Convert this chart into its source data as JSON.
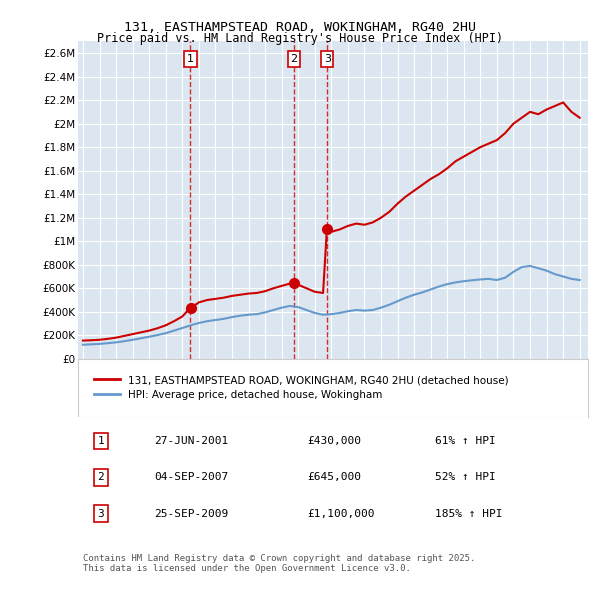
{
  "title1": "131, EASTHAMPSTEAD ROAD, WOKINGHAM, RG40 2HU",
  "title2": "Price paid vs. HM Land Registry's House Price Index (HPI)",
  "background_color": "#dce6f0",
  "plot_bg_color": "#dce6f0",
  "legend_label_red": "131, EASTHAMPSTEAD ROAD, WOKINGHAM, RG40 2HU (detached house)",
  "legend_label_blue": "HPI: Average price, detached house, Wokingham",
  "red_color": "#cc0000",
  "blue_color": "#6699cc",
  "purchase_dates": [
    "2001-06-27",
    "2007-09-04",
    "2009-09-25"
  ],
  "purchase_prices": [
    430000,
    645000,
    1100000
  ],
  "purchase_labels": [
    "1",
    "2",
    "3"
  ],
  "table_entries": [
    {
      "num": "1",
      "date": "27-JUN-2001",
      "price": "£430,000",
      "change": "61% ↑ HPI"
    },
    {
      "num": "2",
      "date": "04-SEP-2007",
      "price": "£645,000",
      "change": "52% ↑ HPI"
    },
    {
      "num": "3",
      "date": "25-SEP-2009",
      "price": "£1,100,000",
      "change": "185% ↑ HPI"
    }
  ],
  "footer": "Contains HM Land Registry data © Crown copyright and database right 2025.\nThis data is licensed under the Open Government Licence v3.0.",
  "ylim": [
    0,
    2700000
  ],
  "yticks": [
    0,
    200000,
    400000,
    600000,
    800000,
    1000000,
    1200000,
    1400000,
    1600000,
    1800000,
    2000000,
    2200000,
    2400000,
    2600000
  ],
  "red_line": {
    "x": [
      1995.0,
      1995.5,
      1996.0,
      1996.5,
      1997.0,
      1997.5,
      1998.0,
      1998.5,
      1999.0,
      1999.5,
      2000.0,
      2000.5,
      2001.0,
      2001.46,
      2001.46,
      2001.5,
      2002.0,
      2002.5,
      2003.0,
      2003.5,
      2004.0,
      2004.5,
      2005.0,
      2005.5,
      2006.0,
      2006.5,
      2007.0,
      2007.5,
      2007.73,
      2007.73,
      2007.8,
      2008.0,
      2008.5,
      2009.0,
      2009.5,
      2009.73,
      2009.73,
      2010.0,
      2010.5,
      2011.0,
      2011.5,
      2012.0,
      2012.5,
      2013.0,
      2013.5,
      2014.0,
      2014.5,
      2015.0,
      2015.5,
      2016.0,
      2016.5,
      2017.0,
      2017.5,
      2018.0,
      2018.5,
      2019.0,
      2019.5,
      2020.0,
      2020.5,
      2021.0,
      2021.5,
      2022.0,
      2022.5,
      2023.0,
      2023.5,
      2024.0,
      2024.5,
      2025.0
    ],
    "y": [
      155000,
      158000,
      162000,
      170000,
      180000,
      195000,
      210000,
      225000,
      240000,
      260000,
      285000,
      320000,
      360000,
      430000,
      430000,
      430000,
      480000,
      500000,
      510000,
      520000,
      535000,
      545000,
      555000,
      560000,
      575000,
      600000,
      620000,
      640000,
      645000,
      645000,
      645000,
      630000,
      600000,
      570000,
      560000,
      1100000,
      1100000,
      1080000,
      1100000,
      1130000,
      1150000,
      1140000,
      1160000,
      1200000,
      1250000,
      1320000,
      1380000,
      1430000,
      1480000,
      1530000,
      1570000,
      1620000,
      1680000,
      1720000,
      1760000,
      1800000,
      1830000,
      1860000,
      1920000,
      2000000,
      2050000,
      2100000,
      2080000,
      2120000,
      2150000,
      2180000,
      2100000,
      2050000
    ]
  },
  "blue_line": {
    "x": [
      1995.0,
      1995.5,
      1996.0,
      1996.5,
      1997.0,
      1997.5,
      1998.0,
      1998.5,
      1999.0,
      1999.5,
      2000.0,
      2000.5,
      2001.0,
      2001.5,
      2002.0,
      2002.5,
      2003.0,
      2003.5,
      2004.0,
      2004.5,
      2005.0,
      2005.5,
      2006.0,
      2006.5,
      2007.0,
      2007.5,
      2008.0,
      2008.5,
      2009.0,
      2009.5,
      2010.0,
      2010.5,
      2011.0,
      2011.5,
      2012.0,
      2012.5,
      2013.0,
      2013.5,
      2014.0,
      2014.5,
      2015.0,
      2015.5,
      2016.0,
      2016.5,
      2017.0,
      2017.5,
      2018.0,
      2018.5,
      2019.0,
      2019.5,
      2020.0,
      2020.5,
      2021.0,
      2021.5,
      2022.0,
      2022.5,
      2023.0,
      2023.5,
      2024.0,
      2024.5,
      2025.0
    ],
    "y": [
      120000,
      123000,
      127000,
      133000,
      140000,
      150000,
      162000,
      175000,
      188000,
      202000,
      218000,
      240000,
      262000,
      285000,
      305000,
      320000,
      330000,
      340000,
      355000,
      367000,
      375000,
      380000,
      395000,
      415000,
      435000,
      450000,
      440000,
      415000,
      390000,
      375000,
      380000,
      390000,
      405000,
      415000,
      410000,
      415000,
      435000,
      460000,
      490000,
      520000,
      545000,
      565000,
      590000,
      615000,
      635000,
      650000,
      660000,
      668000,
      675000,
      680000,
      670000,
      690000,
      740000,
      780000,
      790000,
      770000,
      750000,
      720000,
      700000,
      680000,
      670000
    ]
  },
  "vline_dates": [
    2001.46,
    2007.73,
    2009.73
  ],
  "vline_color": "#cc0000"
}
